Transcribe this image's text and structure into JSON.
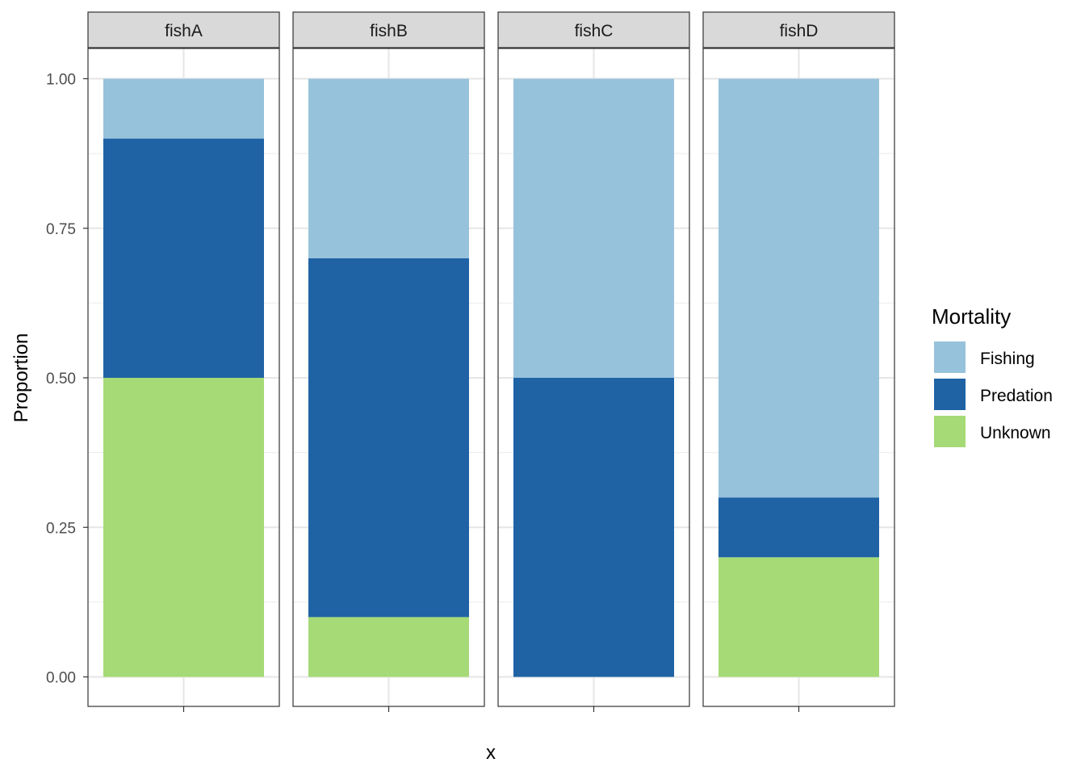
{
  "chart_data": {
    "type": "bar",
    "stacked": true,
    "facets": [
      "fishA",
      "fishB",
      "fishC",
      "fishD"
    ],
    "xlabel": "x",
    "ylabel": "Proportion",
    "ylim": [
      0,
      1
    ],
    "yticks": [
      "0.00",
      "0.25",
      "0.50",
      "0.75",
      "1.00"
    ],
    "ytick_values": [
      0,
      0.25,
      0.5,
      0.75,
      1.0
    ],
    "grid": true,
    "legend": {
      "title": "Mortality",
      "placement": "right",
      "entries": [
        "Fishing",
        "Predation",
        "Unknown"
      ]
    },
    "series": [
      {
        "name": "Fishing",
        "color": "#97C2DB",
        "values": [
          0.1,
          0.3,
          0.5,
          0.7
        ]
      },
      {
        "name": "Predation",
        "color": "#1F63A5",
        "values": [
          0.4,
          0.6,
          0.5,
          0.1
        ]
      },
      {
        "name": "Unknown",
        "color": "#A5DA77",
        "values": [
          0.5,
          0.1,
          0.0,
          0.2
        ]
      }
    ]
  }
}
